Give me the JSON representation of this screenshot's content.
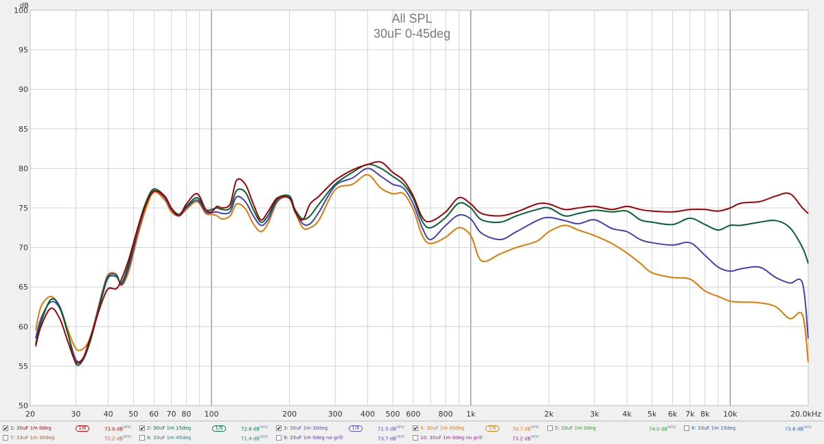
{
  "chart_data": {
    "type": "line",
    "title": "All SPL",
    "subtitle": "30uF 0-45deg",
    "ylabel": "dB",
    "xlabel": "",
    "x_scale": "log",
    "xlim": [
      20,
      20000
    ],
    "ylim": [
      50,
      100
    ],
    "grid": true,
    "x_ticks": [
      {
        "v": 20,
        "label": "20"
      },
      {
        "v": 30,
        "label": "30"
      },
      {
        "v": 40,
        "label": "40"
      },
      {
        "v": 50,
        "label": "50"
      },
      {
        "v": 60,
        "label": "60"
      },
      {
        "v": 70,
        "label": "70"
      },
      {
        "v": 80,
        "label": "80"
      },
      {
        "v": 100,
        "label": "100"
      },
      {
        "v": 200,
        "label": "200"
      },
      {
        "v": 300,
        "label": "300"
      },
      {
        "v": 400,
        "label": "400"
      },
      {
        "v": 500,
        "label": "500"
      },
      {
        "v": 600,
        "label": "600"
      },
      {
        "v": 800,
        "label": "800"
      },
      {
        "v": 1000,
        "label": "1k"
      },
      {
        "v": 2000,
        "label": "2k"
      },
      {
        "v": 3000,
        "label": "3k"
      },
      {
        "v": 4000,
        "label": "4k"
      },
      {
        "v": 5000,
        "label": "5k"
      },
      {
        "v": 6000,
        "label": "6k"
      },
      {
        "v": 7000,
        "label": "7k"
      },
      {
        "v": 8000,
        "label": "8k"
      },
      {
        "v": 10000,
        "label": "10k"
      },
      {
        "v": 20000,
        "label": "20.0kHz"
      }
    ],
    "y_ticks": [
      50,
      55,
      60,
      65,
      70,
      75,
      80,
      85,
      90,
      95,
      100
    ],
    "series": [
      {
        "name": "1: 30uF 1m 0deg",
        "color": "#a00000",
        "x": [
          21,
          22,
          24,
          26,
          28,
          30,
          32,
          34,
          36,
          38,
          40,
          43,
          45,
          48,
          52,
          56,
          60,
          66,
          70,
          75,
          80,
          88,
          95,
          100,
          105,
          110,
          118,
          125,
          135,
          145,
          155,
          165,
          180,
          200,
          210,
          225,
          240,
          260,
          300,
          350,
          400,
          450,
          500,
          550,
          600,
          650,
          700,
          800,
          900,
          1000,
          1100,
          1300,
          1500,
          1800,
          2000,
          2300,
          2600,
          3000,
          3500,
          4000,
          4500,
          5000,
          6000,
          7000,
          8000,
          9000,
          10000,
          11000,
          13000,
          15000,
          17000,
          19000,
          20000
        ],
        "y": [
          57.5,
          60,
          62.3,
          61,
          58,
          55.5,
          56,
          58.5,
          61,
          63.3,
          64.8,
          64.8,
          66,
          68.5,
          72.5,
          75.5,
          77.1,
          76.5,
          75,
          74,
          75.5,
          76.8,
          74.8,
          74.5,
          75.2,
          75,
          75.5,
          78.5,
          78,
          75.5,
          73.5,
          74.5,
          76.3,
          76.2,
          74.5,
          73.5,
          75.5,
          76.5,
          78.5,
          79.8,
          80.5,
          80.8,
          79.5,
          78.5,
          76.5,
          73.8,
          73.3,
          74.5,
          76.3,
          75.5,
          74.3,
          74,
          74.5,
          75.5,
          75.5,
          74.8,
          75,
          75.2,
          74.8,
          75.2,
          74.8,
          74.6,
          74.5,
          74.8,
          74.8,
          74.6,
          75,
          75.6,
          75.8,
          76.5,
          76.8,
          75,
          74.3
        ]
      },
      {
        "name": "2: 30uF 1m 15deg",
        "color": "#006030",
        "x": [
          21,
          22,
          24,
          26,
          28,
          30,
          32,
          34,
          36,
          38,
          40,
          43,
          45,
          48,
          52,
          56,
          60,
          66,
          70,
          75,
          80,
          88,
          95,
          100,
          105,
          110,
          118,
          125,
          135,
          145,
          155,
          165,
          180,
          200,
          210,
          225,
          240,
          260,
          300,
          350,
          400,
          450,
          500,
          550,
          600,
          650,
          700,
          800,
          900,
          1000,
          1100,
          1300,
          1500,
          1800,
          2000,
          2300,
          2600,
          3000,
          3500,
          4000,
          4500,
          5000,
          6000,
          7000,
          8000,
          9000,
          10000,
          11000,
          13000,
          15000,
          17000,
          19000,
          20000
        ],
        "y": [
          57.8,
          60.5,
          63.4,
          62.5,
          59,
          55.3,
          55.8,
          58,
          61,
          64,
          66.2,
          66.3,
          65.5,
          68,
          72.5,
          75.8,
          77.4,
          76.5,
          75,
          74.2,
          75.2,
          76.3,
          74.8,
          74.8,
          75,
          74.8,
          75,
          77.2,
          77,
          74.8,
          73.2,
          74,
          76.2,
          76.5,
          74.8,
          73.6,
          74,
          75.5,
          78,
          79.5,
          80.5,
          80,
          79,
          78,
          76.2,
          73.3,
          72.5,
          73.8,
          75.6,
          75,
          73.5,
          73.2,
          74,
          74.8,
          75,
          74,
          74.3,
          74.7,
          74.5,
          74.6,
          73.5,
          73.2,
          72.9,
          73.7,
          72.9,
          72.2,
          72.8,
          72.8,
          73.2,
          73.4,
          72.5,
          70,
          68
        ]
      },
      {
        "name": "3: 30uF 1m 30deg",
        "color": "#4040b8",
        "x": [
          21,
          22,
          24,
          26,
          28,
          30,
          32,
          34,
          36,
          38,
          40,
          43,
          45,
          48,
          52,
          56,
          60,
          66,
          70,
          75,
          80,
          88,
          95,
          100,
          105,
          110,
          118,
          125,
          135,
          145,
          155,
          165,
          180,
          200,
          210,
          225,
          240,
          260,
          300,
          350,
          400,
          450,
          500,
          550,
          600,
          650,
          700,
          800,
          900,
          1000,
          1100,
          1300,
          1500,
          1800,
          2000,
          2300,
          2600,
          3000,
          3500,
          4000,
          4500,
          5000,
          6000,
          7000,
          8000,
          9000,
          10000,
          11000,
          13000,
          15000,
          17000,
          19000,
          20000
        ],
        "y": [
          58.5,
          61,
          63.1,
          62.3,
          59,
          55.8,
          56,
          58.3,
          61.3,
          64.3,
          66.4,
          66.5,
          65.3,
          67.5,
          72,
          75.5,
          77.2,
          76.3,
          74.8,
          74,
          75,
          76,
          74.5,
          74.4,
          74.5,
          74.3,
          74.5,
          76.4,
          75.8,
          74,
          72.8,
          73.5,
          76,
          76.3,
          74.6,
          73,
          73,
          74.5,
          77.8,
          78.8,
          80,
          79,
          78,
          77.5,
          75.5,
          72.5,
          71,
          72.8,
          74.1,
          73.6,
          71.8,
          71,
          72,
          73.4,
          73.8,
          73.4,
          73,
          73.5,
          72.4,
          72,
          71,
          70.6,
          70.3,
          70.6,
          69,
          67.5,
          67,
          67.3,
          67.5,
          66.2,
          65.5,
          65.5,
          58.5
        ]
      },
      {
        "name": "4: 30uF 1m 45deg",
        "color": "#e07800",
        "x": [
          21,
          22,
          24,
          26,
          28,
          30,
          32,
          34,
          36,
          38,
          40,
          43,
          45,
          48,
          52,
          56,
          60,
          66,
          70,
          75,
          80,
          88,
          95,
          100,
          105,
          110,
          118,
          125,
          135,
          145,
          155,
          165,
          180,
          200,
          210,
          225,
          240,
          260,
          300,
          350,
          400,
          450,
          500,
          550,
          600,
          650,
          700,
          800,
          900,
          1000,
          1100,
          1300,
          1500,
          1800,
          2000,
          2300,
          2600,
          3000,
          3500,
          4000,
          4500,
          5000,
          6000,
          7000,
          8000,
          9000,
          10000,
          11000,
          13000,
          15000,
          17000,
          19000,
          20000
        ],
        "y": [
          59.5,
          62.5,
          63.8,
          62.5,
          59.5,
          57.2,
          57.2,
          58.5,
          61.5,
          64.5,
          66.6,
          66.6,
          65.2,
          67,
          71.5,
          75,
          77,
          76,
          74.5,
          74,
          74.8,
          75.8,
          74.3,
          74.2,
          74,
          73.6,
          74,
          75.5,
          74.9,
          73,
          72,
          73,
          75.8,
          76.3,
          74.5,
          72.5,
          72.5,
          73.5,
          77.3,
          78,
          79.2,
          77.5,
          76.8,
          76.8,
          74.8,
          71.5,
          70.5,
          71.3,
          72.5,
          71.5,
          68.3,
          69.2,
          70,
          70.8,
          72,
          72.8,
          72.2,
          71.5,
          70.5,
          69.3,
          68,
          66.8,
          66.2,
          66,
          64.5,
          63.8,
          63.2,
          63.1,
          63,
          62.5,
          61,
          61.5,
          55.5
        ]
      }
    ],
    "legend": [
      {
        "id": "1",
        "checked": true,
        "label": "1: 30uF 1m 0deg",
        "smoothing": "1/6",
        "level": "73.0 dB",
        "tag": "NEW",
        "color": "#c00000"
      },
      {
        "id": "2",
        "checked": true,
        "label": "2: 30uF 1m 15deg",
        "smoothing": "1/6",
        "level": "72.8 dB",
        "tag": "NEW",
        "color": "#007840"
      },
      {
        "id": "3",
        "checked": true,
        "label": "3: 30uF 1m 30deg",
        "smoothing": "1/6",
        "level": "71.5 dB",
        "tag": "NEW",
        "color": "#4a4acb"
      },
      {
        "id": "4",
        "checked": true,
        "label": "4: 30uF 1m 45deg",
        "smoothing": "1/6",
        "level": "70.7 dB",
        "tag": "NEW",
        "color": "#e07800"
      },
      {
        "id": "5",
        "checked": false,
        "label": "5: 33uF 1m 0deg",
        "smoothing": "",
        "level": "74.0 dB",
        "tag": "NEW",
        "color": "#20a020"
      },
      {
        "id": "6",
        "checked": false,
        "label": "6: 33uF 1m 15deg",
        "smoothing": "",
        "level": "73.6 dB",
        "tag": "NEW",
        "color": "#2060c0"
      },
      {
        "id": "7",
        "checked": false,
        "label": "7: 33uF 1m 30deg",
        "smoothing": "",
        "level": "72.2 dB",
        "tag": "NEW",
        "color": "#b06020"
      },
      {
        "id": "8",
        "checked": false,
        "label": "8: 33uF 1m 45deg",
        "smoothing": "",
        "level": "71.4 dB",
        "tag": "NEW",
        "color": "#208080"
      },
      {
        "id": "9",
        "checked": false,
        "label": "9: 33uF 1m 0deg no grill",
        "smoothing": "",
        "level": "73.7 dB",
        "tag": "NEW",
        "color": "#6030c0"
      },
      {
        "id": "10",
        "checked": false,
        "label": "10: 30uF 1m 0deg no grill",
        "smoothing": "",
        "level": "73.2 dB",
        "tag": "NEW",
        "color": "#a020a0"
      }
    ]
  }
}
